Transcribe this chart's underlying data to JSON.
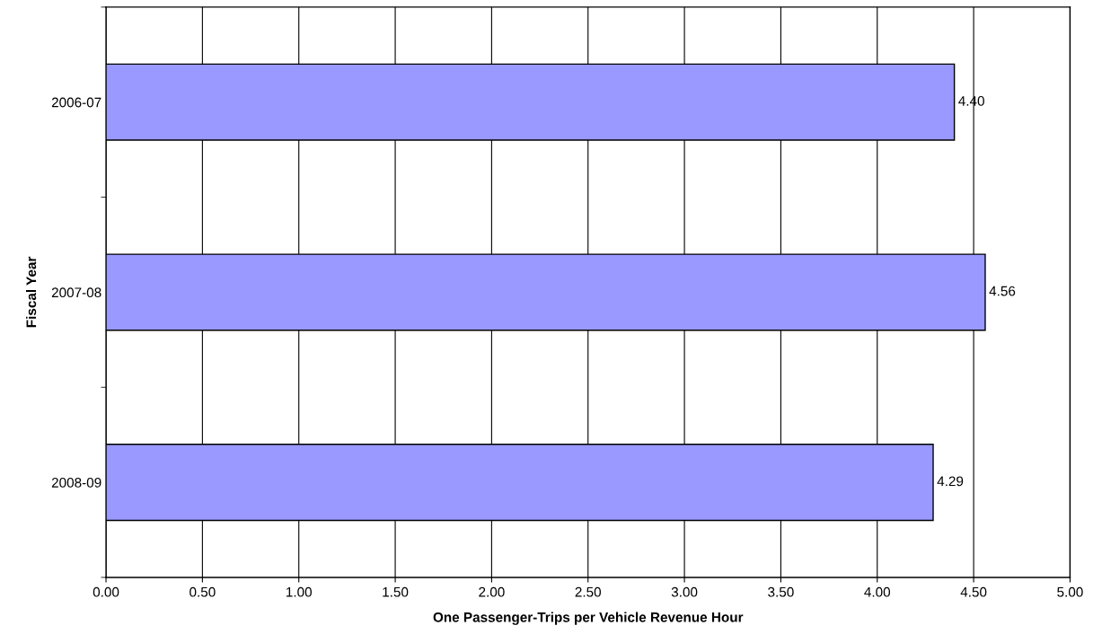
{
  "chart_data": {
    "type": "bar",
    "orientation": "horizontal",
    "xlabel": "One Passenger-Trips per Vehicle Revenue Hour",
    "ylabel": "Fiscal Year",
    "categories": [
      "2006-07",
      "2007-08",
      "2008-09"
    ],
    "series": [
      {
        "color": "#9999ff",
        "values": [
          4.4,
          4.56,
          4.29
        ],
        "value_labels": [
          "4.40",
          "4.56",
          "4.29"
        ]
      }
    ],
    "xlim": [
      0,
      5
    ],
    "xticks": [
      {
        "value": 0,
        "label": "0.00"
      },
      {
        "value": 0.5,
        "label": "0.50"
      },
      {
        "value": 1,
        "label": "1.00"
      },
      {
        "value": 1.5,
        "label": "1.50"
      },
      {
        "value": 2,
        "label": "2.00"
      },
      {
        "value": 2.5,
        "label": "2.50"
      },
      {
        "value": 3,
        "label": "3.00"
      },
      {
        "value": 3.5,
        "label": "3.50"
      },
      {
        "value": 4,
        "label": "4.00"
      },
      {
        "value": 4.5,
        "label": "4.50"
      },
      {
        "value": 5,
        "label": "5.00"
      }
    ],
    "grid": "x"
  }
}
